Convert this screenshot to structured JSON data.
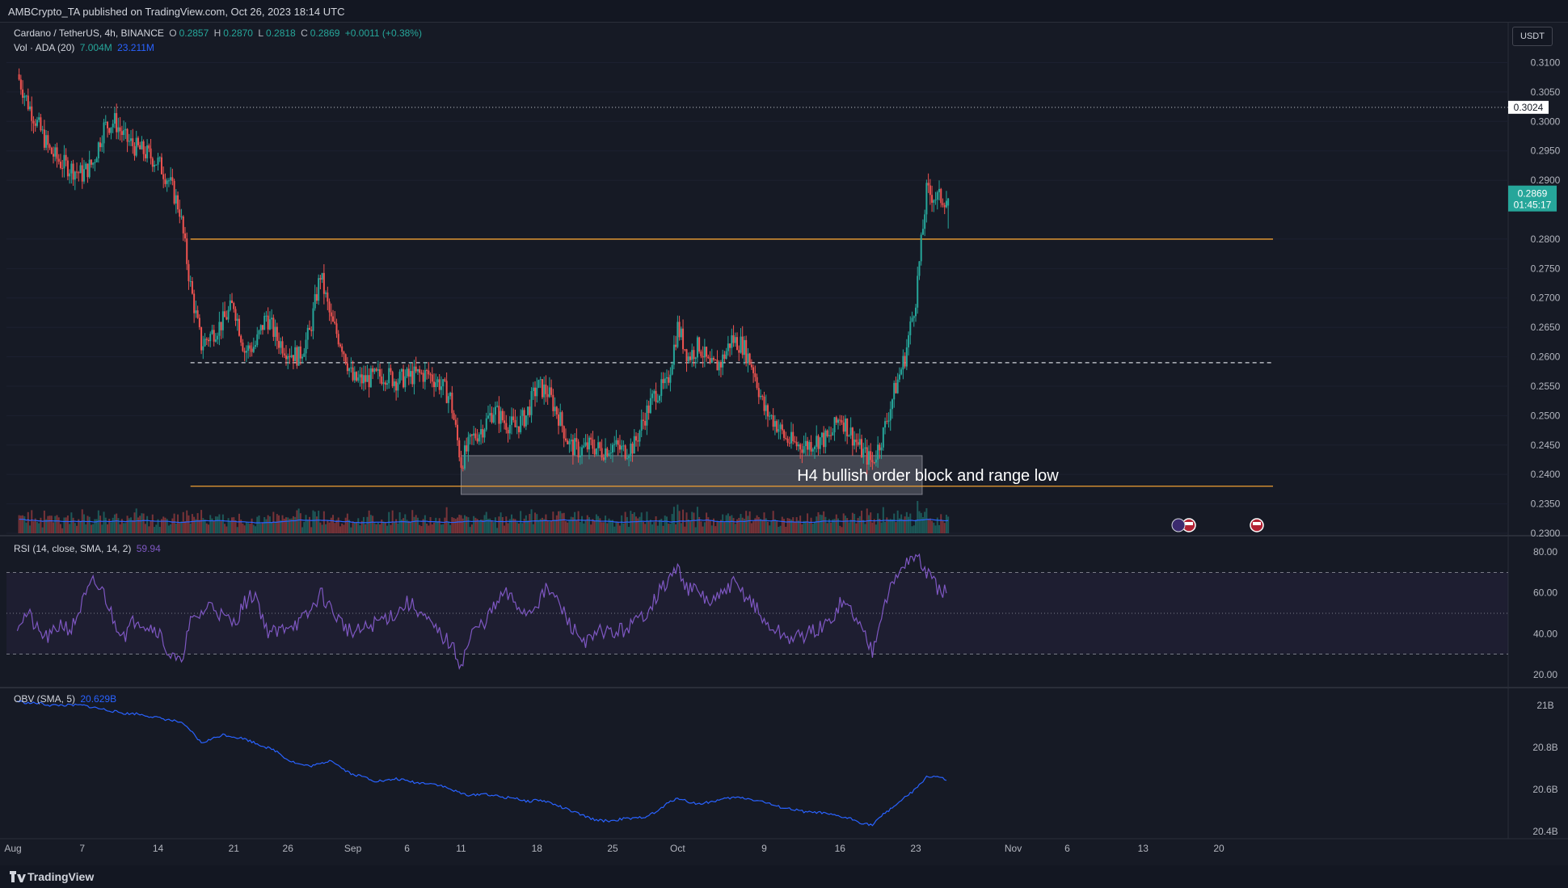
{
  "header": {
    "publisher": "AMBCrypto_TA published on TradingView.com, Oct 26, 2023 18:14 UTC"
  },
  "legend": {
    "pair": "Cardano / TetherUS, 4h, BINANCE",
    "open_label": "O",
    "open": "0.2857",
    "high_label": "H",
    "high": "0.2870",
    "low_label": "L",
    "low": "0.2818",
    "close_label": "C",
    "close": "0.2869",
    "change": "+0.0011 (+0.38%)",
    "vol_label": "Vol · ADA (20)",
    "vol_value": "7.004M",
    "vol_ma": "23.211M",
    "rsi_label": "RSI (14, close, SMA, 14, 2)",
    "rsi_value": "59.94",
    "obv_label": "OBV (SMA, 5)",
    "obv_value": "20.629B"
  },
  "currency_badge": "USDT",
  "footer": {
    "brand": "TradingView"
  },
  "colors": {
    "up": "#26a69a",
    "down": "#ef5350",
    "level": "#f0a033",
    "rsi": "#7e57c2",
    "obv": "#2962ff",
    "background": "#161a25"
  },
  "chart_data": [
    {
      "type": "candlestick",
      "title": "Cardano / TetherUS, 4h, BINANCE",
      "x_axis_ticks": [
        "Aug",
        "7",
        "14",
        "21",
        "26",
        "Sep",
        "6",
        "11",
        "18",
        "25",
        "Oct",
        "9",
        "16",
        "23",
        "Nov",
        "6",
        "13",
        "20"
      ],
      "y_ticks": [
        "0.3100",
        "0.3050",
        "0.3000",
        "0.2950",
        "0.2900",
        "0.2800",
        "0.2750",
        "0.2700",
        "0.2650",
        "0.2600",
        "0.2550",
        "0.2500",
        "0.2450",
        "0.2400",
        "0.2350",
        "0.2300"
      ],
      "ylim": [
        0.23,
        0.3135
      ],
      "approx_close_path": [
        [
          "2023-08-01",
          0.308
        ],
        [
          "2023-08-02",
          0.303
        ],
        [
          "2023-08-03",
          0.299
        ],
        [
          "2023-08-04",
          0.295
        ],
        [
          "2023-08-05",
          0.293
        ],
        [
          "2023-08-06",
          0.292
        ],
        [
          "2023-08-07",
          0.291
        ],
        [
          "2023-08-08",
          0.293
        ],
        [
          "2023-08-09",
          0.299
        ],
        [
          "2023-08-10",
          0.3
        ],
        [
          "2023-08-11",
          0.297
        ],
        [
          "2023-08-12",
          0.2955
        ],
        [
          "2023-08-13",
          0.2945
        ],
        [
          "2023-08-14",
          0.293
        ],
        [
          "2023-08-15",
          0.29
        ],
        [
          "2023-08-16",
          0.285
        ],
        [
          "2023-08-17",
          0.272
        ],
        [
          "2023-08-18",
          0.262
        ],
        [
          "2023-08-19",
          0.264
        ],
        [
          "2023-08-20",
          0.266
        ],
        [
          "2023-08-21",
          0.269
        ],
        [
          "2023-08-22",
          0.261
        ],
        [
          "2023-08-23",
          0.262
        ],
        [
          "2023-08-24",
          0.267
        ],
        [
          "2023-08-25",
          0.263
        ],
        [
          "2023-08-26",
          0.261
        ],
        [
          "2023-08-27",
          0.26
        ],
        [
          "2023-08-28",
          0.264
        ],
        [
          "2023-08-29",
          0.274
        ],
        [
          "2023-08-30",
          0.266
        ],
        [
          "2023-08-31",
          0.262
        ],
        [
          "2023-09-01",
          0.256
        ],
        [
          "2023-09-02",
          0.256
        ],
        [
          "2023-09-03",
          0.2565
        ],
        [
          "2023-09-04",
          0.257
        ],
        [
          "2023-09-05",
          0.256
        ],
        [
          "2023-09-06",
          0.2565
        ],
        [
          "2023-09-07",
          0.257
        ],
        [
          "2023-09-08",
          0.257
        ],
        [
          "2023-09-09",
          0.2555
        ],
        [
          "2023-09-10",
          0.253
        ],
        [
          "2023-09-11",
          0.242
        ],
        [
          "2023-09-12",
          0.246
        ],
        [
          "2023-09-13",
          0.248
        ],
        [
          "2023-09-14",
          0.251
        ],
        [
          "2023-09-15",
          0.249
        ],
        [
          "2023-09-16",
          0.248
        ],
        [
          "2023-09-17",
          0.25
        ],
        [
          "2023-09-18",
          0.255
        ],
        [
          "2023-09-19",
          0.254
        ],
        [
          "2023-09-20",
          0.25
        ],
        [
          "2023-09-21",
          0.245
        ],
        [
          "2023-09-22",
          0.244
        ],
        [
          "2023-09-23",
          0.245
        ],
        [
          "2023-09-24",
          0.244
        ],
        [
          "2023-09-25",
          0.245
        ],
        [
          "2023-09-26",
          0.244
        ],
        [
          "2023-09-27",
          0.245
        ],
        [
          "2023-09-28",
          0.25
        ],
        [
          "2023-09-29",
          0.254
        ],
        [
          "2023-09-30",
          0.255
        ],
        [
          "2023-10-01",
          0.265
        ],
        [
          "2023-10-02",
          0.26
        ],
        [
          "2023-10-03",
          0.262
        ],
        [
          "2023-10-04",
          0.258
        ],
        [
          "2023-10-05",
          0.259
        ],
        [
          "2023-10-06",
          0.263
        ],
        [
          "2023-10-07",
          0.262
        ],
        [
          "2023-10-08",
          0.258
        ],
        [
          "2023-10-09",
          0.251
        ],
        [
          "2023-10-10",
          0.249
        ],
        [
          "2023-10-11",
          0.246
        ],
        [
          "2023-10-12",
          0.245
        ],
        [
          "2023-10-13",
          0.245
        ],
        [
          "2023-10-14",
          0.246
        ],
        [
          "2023-10-15",
          0.246
        ],
        [
          "2023-10-16",
          0.25
        ],
        [
          "2023-10-17",
          0.247
        ],
        [
          "2023-10-18",
          0.244
        ],
        [
          "2023-10-19",
          0.242
        ],
        [
          "2023-10-20",
          0.247
        ],
        [
          "2023-10-21",
          0.254
        ],
        [
          "2023-10-22",
          0.26
        ],
        [
          "2023-10-23",
          0.27
        ],
        [
          "2023-10-24",
          0.288
        ],
        [
          "2023-10-25",
          0.287
        ],
        [
          "2023-10-26",
          0.2869
        ]
      ],
      "last_price": "0.2869",
      "countdown": "01:45:17",
      "horizontal_levels": [
        {
          "price": 0.3024,
          "label": "0.3024",
          "style": "dotted"
        },
        {
          "price": 0.28,
          "style": "solid"
        },
        {
          "price": 0.259,
          "style": "dashed"
        },
        {
          "price": 0.238,
          "style": "solid"
        }
      ],
      "annotation": {
        "text": "H4 bullish order block and range low",
        "from": "2023-09-11",
        "to": "2023-10-23",
        "price_top": 0.2432,
        "price_bottom": 0.2366
      }
    },
    {
      "type": "line",
      "title": "RSI (14, close, SMA, 14, 2)",
      "y_ticks": [
        "80.00",
        "60.00",
        "40.00",
        "20.00"
      ],
      "ylim": [
        14,
        86
      ],
      "bands": [
        70,
        50,
        30
      ],
      "series": [
        {
          "name": "RSI",
          "values": [
            45,
            50,
            40,
            38,
            45,
            42,
            55,
            65,
            60,
            45,
            40,
            48,
            44,
            42,
            30,
            25,
            45,
            50,
            55,
            48,
            45,
            55,
            60,
            42,
            40,
            45,
            45,
            50,
            60,
            52,
            45,
            40,
            42,
            45,
            48,
            50,
            55,
            52,
            45,
            40,
            35,
            25,
            40,
            45,
            52,
            60,
            55,
            50,
            55,
            62,
            55,
            45,
            38,
            36,
            42,
            40,
            42,
            45,
            50,
            58,
            65,
            72,
            62,
            60,
            55,
            58,
            65,
            60,
            55,
            45,
            42,
            38,
            38,
            40,
            42,
            45,
            55,
            52,
            42,
            32,
            55,
            65,
            75,
            78,
            70,
            62,
            60
          ]
        }
      ]
    },
    {
      "type": "line",
      "title": "OBV (SMA, 5)",
      "y_ticks": [
        "21B",
        "20.8B",
        "20.6B",
        "20.4B"
      ],
      "ylim": [
        20.38,
        21.08
      ],
      "series": [
        {
          "name": "OBV",
          "values": [
            21.02,
            21.01,
            21.01,
            21.0,
            21.0,
            21.0,
            21.0,
            20.99,
            20.98,
            20.97,
            20.96,
            20.96,
            20.95,
            20.94,
            20.93,
            20.92,
            20.88,
            20.82,
            20.84,
            20.86,
            20.85,
            20.84,
            20.82,
            20.8,
            20.78,
            20.74,
            20.72,
            20.71,
            20.72,
            20.74,
            20.7,
            20.67,
            20.66,
            20.64,
            20.64,
            20.65,
            20.64,
            20.63,
            20.63,
            20.62,
            20.6,
            20.58,
            20.57,
            20.58,
            20.57,
            20.56,
            20.56,
            20.54,
            20.55,
            20.54,
            20.52,
            20.5,
            20.48,
            20.46,
            20.45,
            20.45,
            20.46,
            20.46,
            20.47,
            20.49,
            20.53,
            20.56,
            20.54,
            20.53,
            20.54,
            20.55,
            20.56,
            20.56,
            20.55,
            20.54,
            20.52,
            20.51,
            20.5,
            20.49,
            20.49,
            20.48,
            20.47,
            20.46,
            20.44,
            20.43,
            20.48,
            20.52,
            20.56,
            20.6,
            20.66,
            20.66,
            20.64
          ]
        }
      ]
    }
  ]
}
